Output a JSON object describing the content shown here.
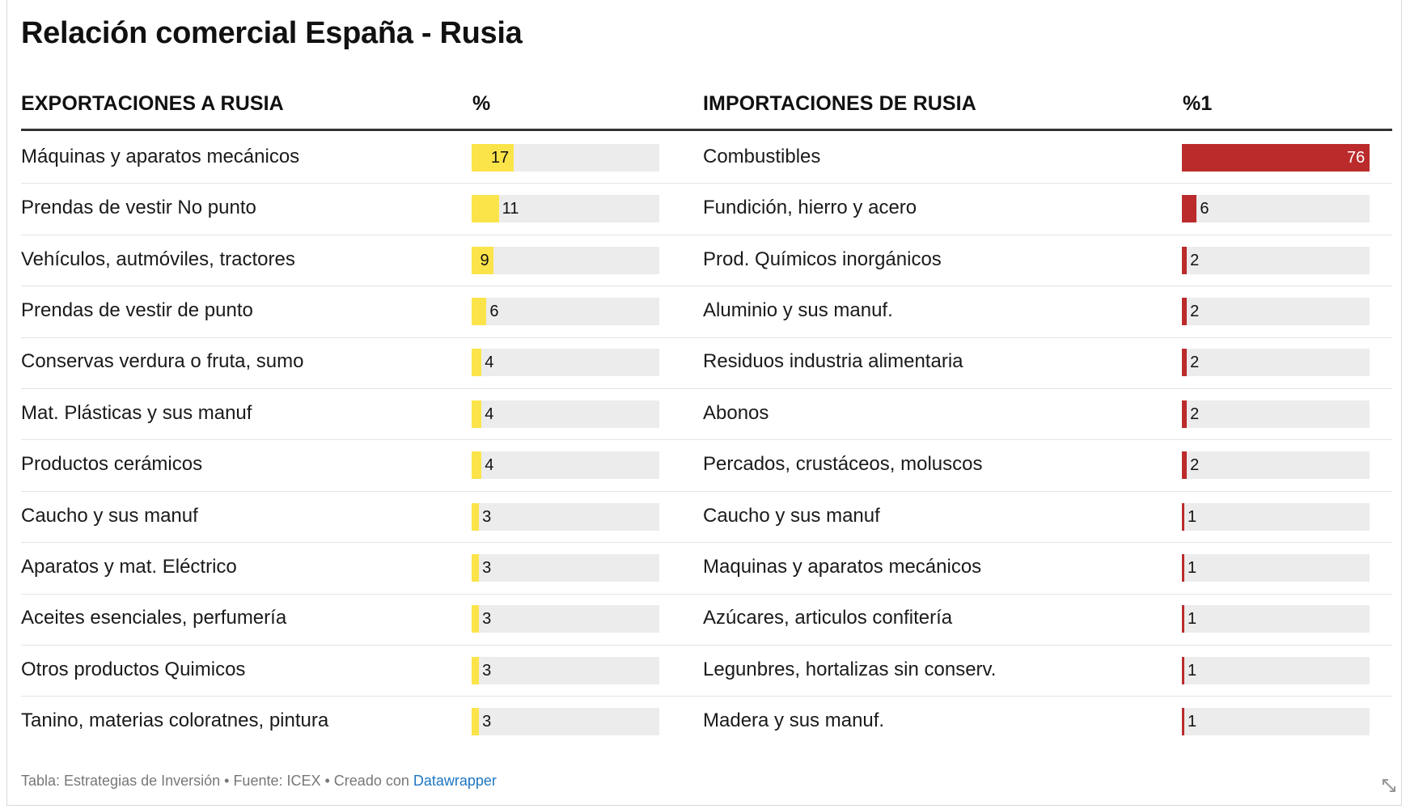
{
  "title": "Relación comercial España - Rusia",
  "headers": {
    "exports": "EXPORTACIONES A RUSIA",
    "exports_pct": "%",
    "imports": "IMPORTACIONES DE RUSIA",
    "imports_pct": "%1"
  },
  "chart_data": {
    "type": "table",
    "title": "Relación comercial España - Rusia",
    "bar_max": 76,
    "colors": {
      "exports": "#fbe44a",
      "imports": "#bb2b2b",
      "track": "#ececec"
    },
    "exports": [
      {
        "label": "Máquinas y aparatos mecánicos",
        "value": 17
      },
      {
        "label": "Prendas de vestir No punto",
        "value": 11
      },
      {
        "label": "Vehículos, autmóviles, tractores",
        "value": 9
      },
      {
        "label": "Prendas de vestir de punto",
        "value": 6
      },
      {
        "label": "Conservas verdura o fruta, sumo",
        "value": 4
      },
      {
        "label": "Mat. Plásticas y sus manuf",
        "value": 4
      },
      {
        "label": "Productos cerámicos",
        "value": 4
      },
      {
        "label": "Caucho y sus manuf",
        "value": 3
      },
      {
        "label": "Aparatos y mat. Eléctrico",
        "value": 3
      },
      {
        "label": "Aceites esenciales, perfumería",
        "value": 3
      },
      {
        "label": "Otros productos Quimicos",
        "value": 3
      },
      {
        "label": "Tanino, materias coloratnes, pintura",
        "value": 3
      }
    ],
    "imports": [
      {
        "label": "Combustibles",
        "value": 76
      },
      {
        "label": "Fundición, hierro y acero",
        "value": 6
      },
      {
        "label": "Prod. Químicos inorgánicos",
        "value": 2
      },
      {
        "label": "Aluminio y sus manuf.",
        "value": 2
      },
      {
        "label": "Residuos industria alimentaria",
        "value": 2
      },
      {
        "label": "Abonos",
        "value": 2
      },
      {
        "label": "Percados, crustáceos, moluscos",
        "value": 2
      },
      {
        "label": "Caucho y sus manuf",
        "value": 1
      },
      {
        "label": "Maquinas y aparatos mecánicos",
        "value": 1
      },
      {
        "label": "Azúcares, articulos confitería",
        "value": 1
      },
      {
        "label": "Legunbres, hortalizas sin conserv.",
        "value": 1
      },
      {
        "label": "Madera y sus manuf.",
        "value": 1
      }
    ]
  },
  "footer": {
    "text": "Tabla: Estrategias de Inversión • Fuente: ICEX • Creado con ",
    "link": "Datawrapper"
  }
}
